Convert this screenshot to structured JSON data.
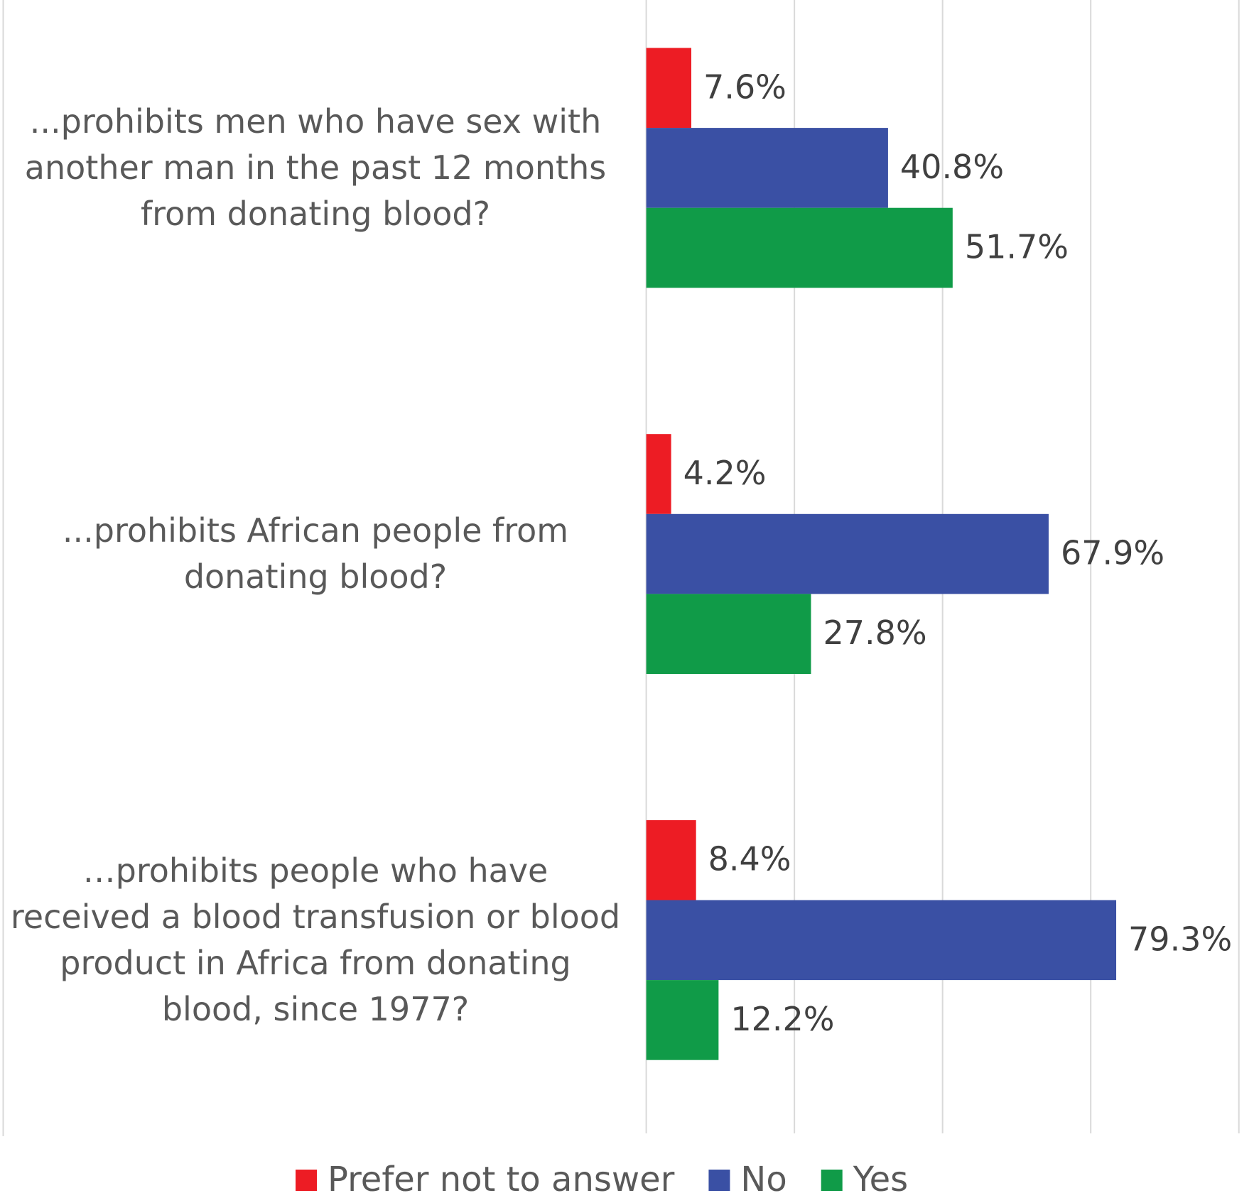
{
  "chart_data": {
    "type": "bar",
    "orientation": "horizontal",
    "categories": [
      "...prohibits men who have sex with another man in the past 12 months from donating blood?",
      "...prohibits African people from donating blood?",
      "…prohibits people who have received a blood transfusion or blood product in Africa from donating blood, since 1977?"
    ],
    "series": [
      {
        "name": "Prefer not to answer",
        "color": "#ed1c24",
        "values": [
          7.6,
          4.2,
          8.4
        ],
        "value_labels": [
          "7.6%",
          "4.2%",
          "8.4%"
        ]
      },
      {
        "name": "No",
        "color": "#3a50a4",
        "values": [
          40.8,
          67.9,
          79.3
        ],
        "value_labels": [
          "40.8%",
          "67.9%",
          "79.3%"
        ]
      },
      {
        "name": "Yes",
        "color": "#109b48",
        "values": [
          51.7,
          27.8,
          12.2
        ],
        "value_labels": [
          "51.7%",
          "27.8%",
          "12.2%"
        ]
      }
    ],
    "xlim": [
      0,
      100
    ],
    "xticks": [
      0,
      25,
      50,
      75,
      100
    ],
    "grid": true,
    "legend": "bottom"
  }
}
